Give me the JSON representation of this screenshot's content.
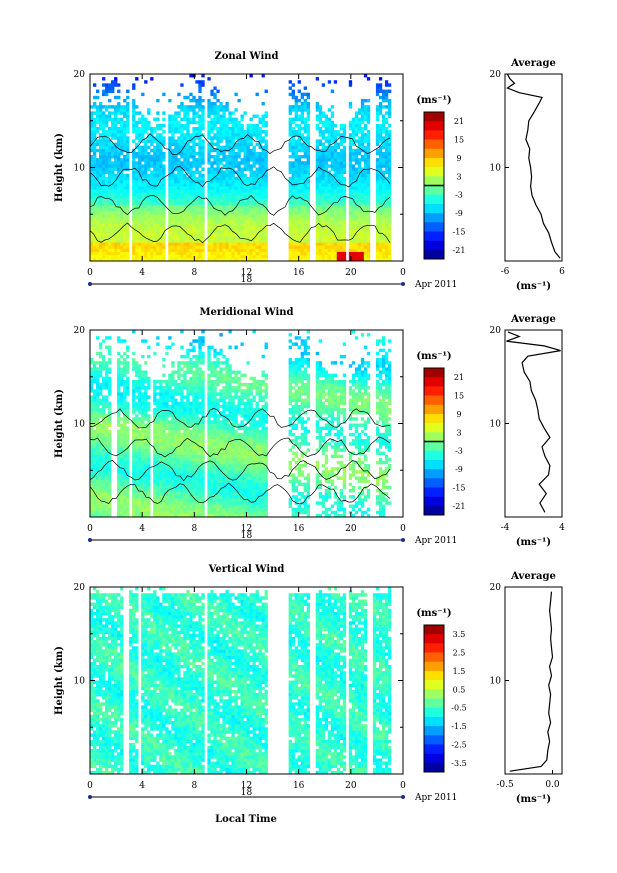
{
  "page": {
    "date_label": "Apr 2011",
    "day_label": "18",
    "xlabel_bottom": "Local Time"
  },
  "chart_data": [
    {
      "type": "heatmap",
      "title": "Zonal Wind",
      "ylabel": "Height (km)",
      "ylim": [
        0,
        20
      ],
      "y_ticks": [
        "20",
        "10"
      ],
      "x_ticks": [
        "0",
        "4",
        "8",
        "12",
        "16",
        "20",
        "0"
      ],
      "xlim": [
        0,
        24
      ],
      "colorbar": {
        "unit": "(ms⁻¹)",
        "range": [
          -24,
          24
        ],
        "ticks": [
          "21",
          "15",
          "9",
          "3",
          "-3",
          "-9",
          "-15",
          "-21"
        ],
        "zero_line": 0
      },
      "gaps_hours": [
        [
          13.7,
          15.2
        ],
        [
          16.8,
          17.2
        ],
        [
          3.0,
          3.3
        ],
        [
          5.8,
          6.1
        ],
        [
          8.7,
          9.0
        ],
        [
          19.6,
          19.9
        ],
        [
          21.5,
          21.9
        ]
      ],
      "average": {
        "title": "Average",
        "unit": "(ms⁻¹)",
        "xlim": [
          -6,
          6
        ],
        "x_ticks": [
          "-6",
          "6"
        ],
        "y_ticks": [
          "20",
          "10"
        ],
        "height": [
          0.3,
          1,
          2,
          3,
          4,
          5,
          6,
          7,
          8,
          9,
          10,
          11,
          12,
          13,
          14,
          15,
          16,
          17,
          17.5,
          18,
          18.5,
          19,
          19.5,
          20
        ],
        "value": [
          5.6,
          4.5,
          3.8,
          3.2,
          2.1,
          1.6,
          0.5,
          -0.3,
          -0.6,
          -0.4,
          -0.6,
          -1.0,
          -0.8,
          -1.6,
          -1.2,
          -1.0,
          0.2,
          1.3,
          1.8,
          -3.0,
          -5.5,
          -4.0,
          -5.0,
          -5.5
        ]
      }
    },
    {
      "type": "heatmap",
      "title": "Meridional Wind",
      "ylabel": "Height (km)",
      "ylim": [
        0,
        20
      ],
      "y_ticks": [
        "20",
        "10"
      ],
      "x_ticks": [
        "0",
        "4",
        "8",
        "12",
        "16",
        "20",
        "0"
      ],
      "xlim": [
        0,
        24
      ],
      "colorbar": {
        "unit": "(ms⁻¹)",
        "range": [
          -24,
          24
        ],
        "ticks": [
          "21",
          "15",
          "9",
          "3",
          "-3",
          "-9",
          "-15",
          "-21"
        ],
        "zero_line": 0
      },
      "gaps_hours": [
        [
          13.7,
          15.2
        ],
        [
          16.8,
          17.2
        ],
        [
          1.6,
          2.0
        ],
        [
          3.0,
          3.3
        ],
        [
          4.6,
          4.9
        ],
        [
          8.7,
          9.0
        ],
        [
          19.6,
          19.9
        ],
        [
          21.5,
          21.9
        ]
      ],
      "average": {
        "title": "Average",
        "unit": "(ms⁻¹)",
        "xlim": [
          -4,
          4
        ],
        "x_ticks": [
          "-4",
          "4"
        ],
        "y_ticks": [
          "20",
          "10"
        ],
        "height": [
          0.5,
          1.5,
          2.5,
          3.5,
          4.5,
          5.5,
          6.5,
          7.5,
          8.5,
          9.5,
          10.5,
          11.5,
          12.5,
          13.5,
          14.5,
          15.5,
          16.5,
          17.2,
          17.8,
          18.3,
          18.8,
          19.3,
          19.8
        ],
        "value": [
          1.6,
          0.9,
          1.8,
          0.8,
          2.1,
          2.3,
          1.6,
          1.2,
          2.3,
          1.5,
          0.8,
          0.6,
          0.3,
          -0.3,
          -0.5,
          -1.3,
          -1.6,
          -0.8,
          3.8,
          1.5,
          -3.8,
          -2.0,
          -3.6
        ]
      }
    },
    {
      "type": "heatmap",
      "title": "Vertical Wind",
      "ylabel": "Height (km)",
      "ylim": [
        0,
        20
      ],
      "y_ticks": [
        "20",
        "10"
      ],
      "x_ticks": [
        "0",
        "4",
        "8",
        "12",
        "16",
        "20",
        "0"
      ],
      "xlim": [
        0,
        24
      ],
      "colorbar": {
        "unit": "(ms⁻¹)",
        "range": [
          -4,
          4
        ],
        "ticks": [
          "3.5",
          "2.5",
          "1.5",
          "0.5",
          "-0.5",
          "-1.5",
          "-2.5",
          "-3.5"
        ],
        "zero_line": null
      },
      "gaps_hours": [
        [
          13.7,
          15.2
        ],
        [
          16.8,
          17.2
        ],
        [
          2.6,
          3.0
        ],
        [
          3.6,
          3.9
        ],
        [
          8.7,
          9.1
        ],
        [
          19.6,
          19.9
        ],
        [
          21.2,
          21.6
        ]
      ],
      "average": {
        "title": "Average",
        "unit": "(ms⁻¹)",
        "xlim": [
          -0.5,
          0.1
        ],
        "x_ticks": [
          "-0.5",
          "0.0"
        ],
        "y_ticks": [
          "20",
          "10"
        ],
        "height": [
          0.3,
          0.8,
          1.5,
          2.5,
          3.5,
          4.5,
          5.5,
          6.5,
          7.5,
          8.5,
          9.5,
          10.5,
          11.5,
          12.5,
          13.5,
          14.5,
          15.5,
          16.5,
          17.5,
          18.5,
          19.5
        ],
        "value": [
          -0.45,
          -0.12,
          -0.06,
          -0.05,
          -0.03,
          -0.05,
          -0.02,
          -0.04,
          -0.03,
          -0.02,
          -0.04,
          -0.01,
          -0.03,
          0.0,
          -0.01,
          -0.02,
          -0.01,
          -0.02,
          -0.03,
          -0.02,
          -0.01
        ]
      }
    }
  ]
}
